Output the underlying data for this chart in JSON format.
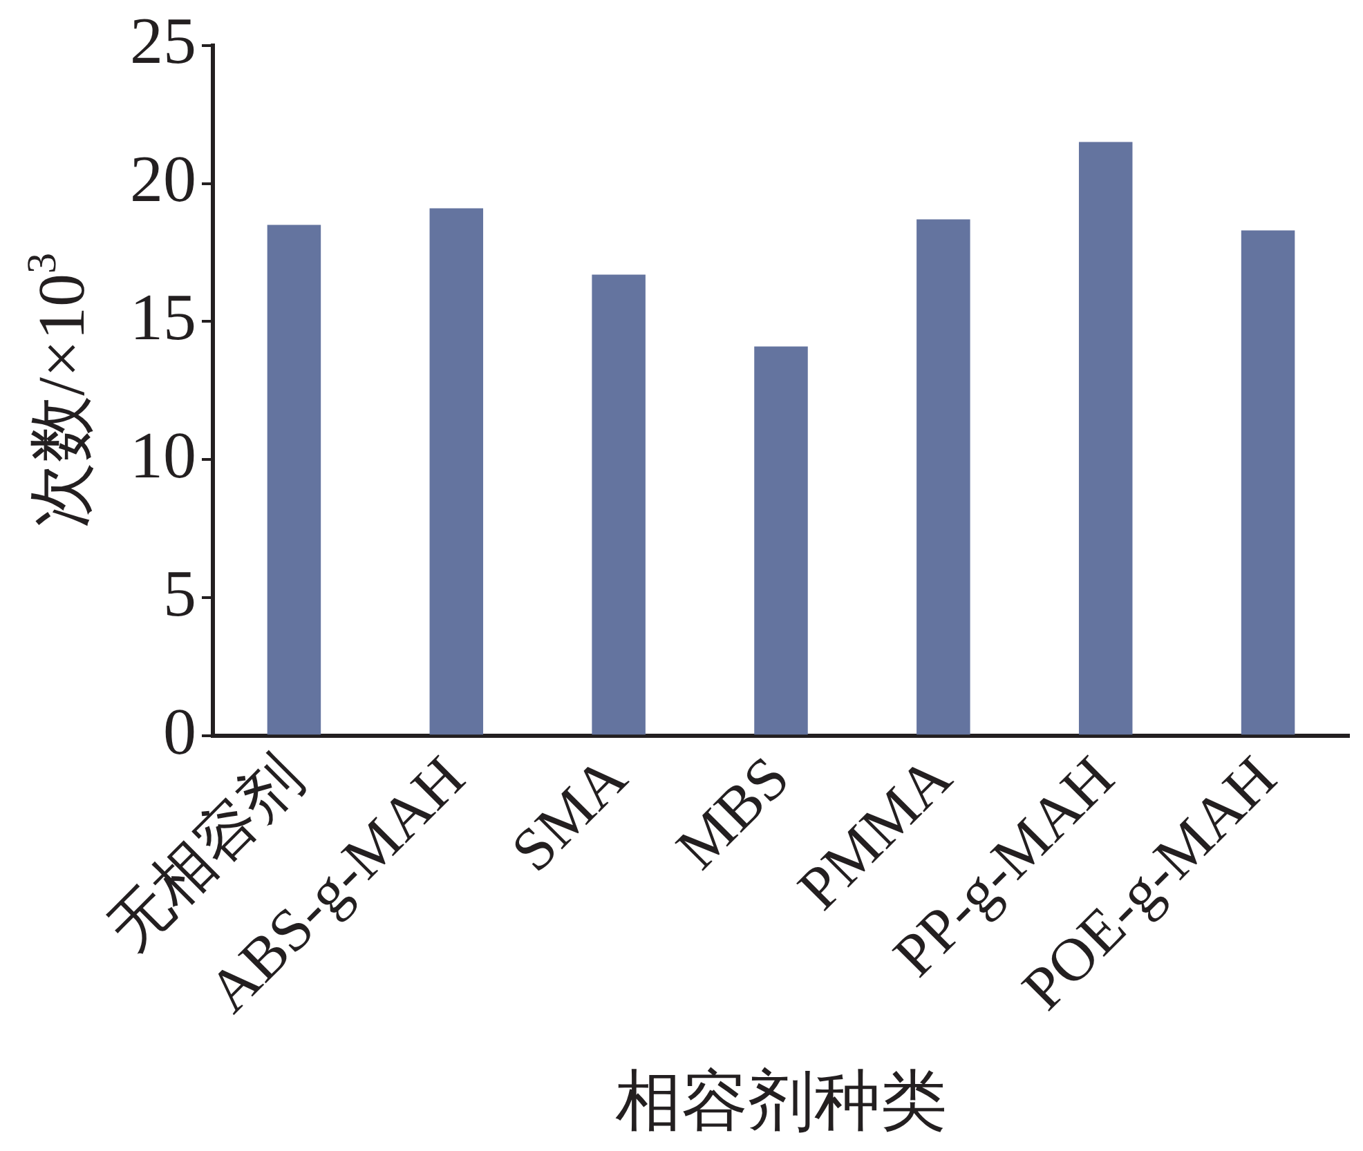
{
  "chart_data": {
    "type": "bar",
    "xlabel": "相容剂种类",
    "ylabel": "次数/×10$^{3}$",
    "categories": [
      "无相容剂",
      "ABS-g-MAH",
      "SMA",
      "MBS",
      "PMMA",
      "PP-g-MAH",
      "POE-g-MAH"
    ],
    "values": [
      18.5,
      19.1,
      16.7,
      14.1,
      18.7,
      21.5,
      18.3
    ],
    "color": "#64749f",
    "ylim": [
      0,
      25
    ],
    "yticks": [
      0,
      5,
      10,
      15,
      20,
      25
    ],
    "grid": false,
    "legend": false
  }
}
